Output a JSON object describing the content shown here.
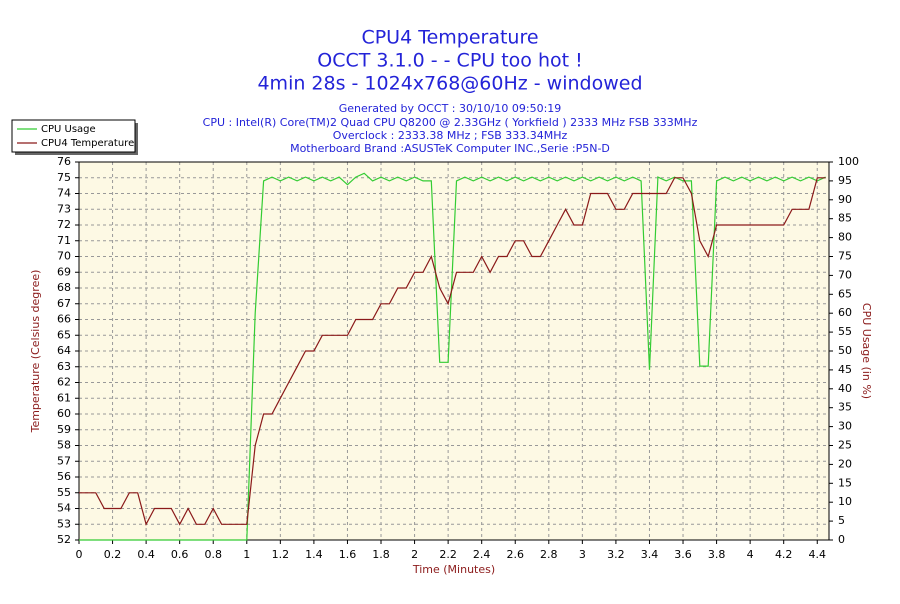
{
  "chart_data": {
    "type": "line",
    "title": "CPU4 Temperature",
    "subtitles": [
      "OCCT 3.1.0 -  - CPU too hot !",
      "4min 28s - 1024x768@60Hz - windowed"
    ],
    "info": [
      "Generated by OCCT : 30/10/10 09:50:19",
      "CPU : Intel(R) Core(TM)2 Quad CPU Q8200 @ 2.33GHz ( Yorkfield ) 2333 MHz FSB 333MHz",
      "Overclock : 2333.38 MHz ; FSB 333.34MHz",
      "Motherboard Brand :ASUSTeK Computer INC.,Serie :P5N-D"
    ],
    "xlabel": "Time (Minutes)",
    "ylabel": "Temperature (Celsius degree)",
    "y2label": "CPU Usage (in %)",
    "xlim": [
      0,
      4.47
    ],
    "xticks": [
      0,
      0.2,
      0.4,
      0.6,
      0.8,
      1,
      1.2,
      1.4,
      1.6,
      1.8,
      2,
      2.2,
      2.4,
      2.6,
      2.8,
      3,
      3.2,
      3.4,
      3.6,
      3.8,
      4,
      4.2,
      4.4
    ],
    "ylim": [
      52,
      76
    ],
    "yticks": [
      52,
      53,
      54,
      55,
      56,
      57,
      58,
      59,
      60,
      61,
      62,
      63,
      64,
      65,
      66,
      67,
      68,
      69,
      70,
      71,
      72,
      73,
      74,
      75,
      76
    ],
    "y2lim": [
      0,
      100
    ],
    "y2ticks": [
      0,
      5,
      10,
      15,
      20,
      25,
      30,
      35,
      40,
      45,
      50,
      55,
      60,
      65,
      70,
      75,
      80,
      85,
      90,
      95,
      100
    ],
    "grid": true,
    "legend": "upper left",
    "x": [
      0,
      0.05,
      0.1,
      0.15,
      0.2,
      0.25,
      0.3,
      0.35,
      0.4,
      0.45,
      0.5,
      0.55,
      0.6,
      0.65,
      0.7,
      0.75,
      0.8,
      0.85,
      0.9,
      0.95,
      1,
      1.05,
      1.1,
      1.15,
      1.2,
      1.25,
      1.3,
      1.35,
      1.4,
      1.45,
      1.5,
      1.55,
      1.6,
      1.65,
      1.7,
      1.75,
      1.8,
      1.85,
      1.9,
      1.95,
      2,
      2.05,
      2.1,
      2.15,
      2.2,
      2.25,
      2.3,
      2.35,
      2.4,
      2.45,
      2.5,
      2.55,
      2.6,
      2.65,
      2.7,
      2.75,
      2.8,
      2.85,
      2.9,
      2.95,
      3,
      3.05,
      3.1,
      3.15,
      3.2,
      3.25,
      3.3,
      3.35,
      3.4,
      3.45,
      3.5,
      3.55,
      3.6,
      3.65,
      3.7,
      3.75,
      3.8,
      3.85,
      3.9,
      3.95,
      4,
      4.05,
      4.1,
      4.15,
      4.2,
      4.25,
      4.3,
      4.35,
      4.4,
      4.45
    ],
    "series": [
      {
        "name": "CPU Usage",
        "color": "#33cc33",
        "axis": "y2",
        "values": [
          0,
          0,
          0,
          0,
          0,
          0,
          0,
          0,
          0,
          0,
          0,
          0,
          0,
          0,
          0,
          0,
          0,
          0,
          0,
          0,
          0,
          60,
          95,
          96,
          95,
          96,
          95,
          96,
          95,
          96,
          95,
          96,
          94,
          96,
          97,
          95,
          96,
          95,
          96,
          95,
          96,
          95,
          95,
          47,
          47,
          95,
          96,
          95,
          96,
          95,
          96,
          95,
          96,
          95,
          96,
          95,
          96,
          95,
          96,
          95,
          96,
          95,
          96,
          95,
          96,
          95,
          96,
          95,
          45,
          96,
          95,
          96,
          95,
          95,
          46,
          46,
          95,
          96,
          95,
          96,
          95,
          96,
          95,
          96,
          95,
          96,
          95,
          96,
          95,
          96
        ]
      },
      {
        "name": "CPU4 Temperature",
        "color": "#8b1a1a",
        "values": [
          55,
          55,
          55,
          54,
          54,
          54,
          55,
          55,
          53,
          54,
          54,
          54,
          53,
          54,
          53,
          53,
          54,
          53,
          53,
          53,
          53,
          58,
          60,
          60,
          61,
          62,
          63,
          64,
          64,
          65,
          65,
          65,
          65,
          66,
          66,
          66,
          67,
          67,
          68,
          68,
          69,
          69,
          70,
          68,
          67,
          69,
          69,
          69,
          70,
          69,
          70,
          70,
          71,
          71,
          70,
          70,
          71,
          72,
          73,
          72,
          72,
          74,
          74,
          74,
          73,
          73,
          74,
          74,
          74,
          74,
          74,
          75,
          75,
          74,
          71,
          70,
          72,
          72,
          72,
          72,
          72,
          72,
          72,
          72,
          72,
          73,
          73,
          73,
          75,
          75
        ]
      }
    ]
  }
}
